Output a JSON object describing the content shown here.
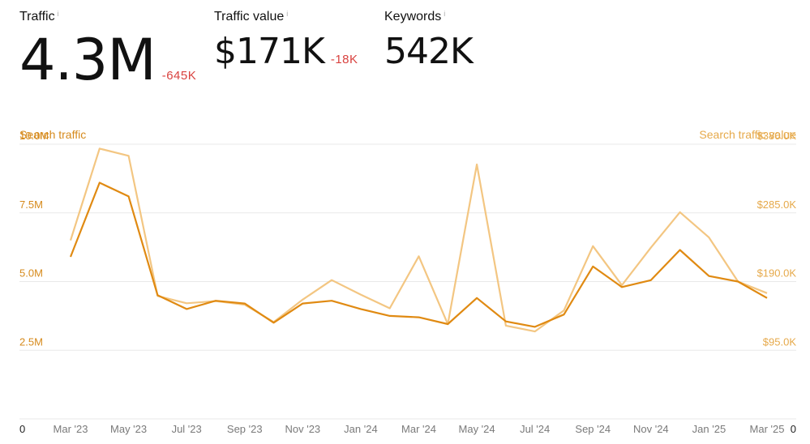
{
  "metrics": {
    "traffic": {
      "label": "Traffic",
      "value": "4.3M",
      "delta": "-645K"
    },
    "traffic_value": {
      "label": "Traffic value",
      "value": "$171K",
      "delta": "-18K"
    },
    "keywords": {
      "label": "Keywords",
      "value": "542K"
    }
  },
  "info_glyph": "i",
  "colors": {
    "primary": "#e08a12",
    "secondary": "#f3c682",
    "label_left": "#d68a1c",
    "label_right": "#e6a94a",
    "grid": "#e9e9e9",
    "xtick": "#7a7a7a",
    "delta": "#d9423f"
  },
  "chart_data": {
    "type": "line",
    "left_axis_title": "Search traffic",
    "right_axis_title": "Search traffic value",
    "y_left_ticks": [
      "0",
      "2.5M",
      "5.0M",
      "7.5M",
      "10.0M"
    ],
    "y_left_tick_values": [
      0,
      2.5,
      5.0,
      7.5,
      10.0
    ],
    "y_right_ticks": [
      "0",
      "$95.0K",
      "$190.0K",
      "$285.0K",
      "$380.0K"
    ],
    "y_right_tick_values": [
      0,
      95,
      190,
      285,
      380
    ],
    "ylim_left": [
      0,
      10.0
    ],
    "ylim_right": [
      0,
      380
    ],
    "x_tick_labels": [
      "Mar '23",
      "May '23",
      "Jul '23",
      "Sep '23",
      "Nov '23",
      "Jan '24",
      "Mar '24",
      "May '24",
      "Jul '24",
      "Sep '24",
      "Nov '24",
      "Jan '25",
      "Mar '25"
    ],
    "x": [
      "Mar '23",
      "Apr '23",
      "May '23",
      "Jun '23",
      "Jul '23",
      "Aug '23",
      "Sep '23",
      "Oct '23",
      "Nov '23",
      "Dec '23",
      "Jan '24",
      "Feb '24",
      "Mar '24",
      "Apr '24",
      "May '24",
      "Jun '24",
      "Jul '24",
      "Aug '24",
      "Sep '24",
      "Oct '24",
      "Nov '24",
      "Dec '24",
      "Jan '25",
      "Feb '25",
      "Mar '25"
    ],
    "series": [
      {
        "axis": "left",
        "color_key": "primary",
        "unit": "M",
        "values": [
          5.9,
          8.6,
          8.1,
          4.5,
          4.0,
          4.3,
          4.2,
          3.5,
          4.2,
          4.3,
          4.0,
          3.75,
          3.7,
          3.45,
          4.4,
          3.55,
          3.35,
          3.8,
          5.55,
          4.8,
          5.05,
          6.15,
          5.2,
          5.0,
          4.4
        ],
        "value_scale": "left"
      },
      {
        "axis": "right",
        "color_key": "secondary",
        "unit": "$K",
        "values": [
          247,
          374,
          364,
          170,
          160,
          163,
          158,
          134,
          165,
          192,
          172,
          153,
          225,
          131,
          352,
          129,
          121,
          150,
          239,
          185,
          237,
          286,
          251,
          190,
          174
        ],
        "value_scale": "right"
      }
    ],
    "grid": true
  }
}
